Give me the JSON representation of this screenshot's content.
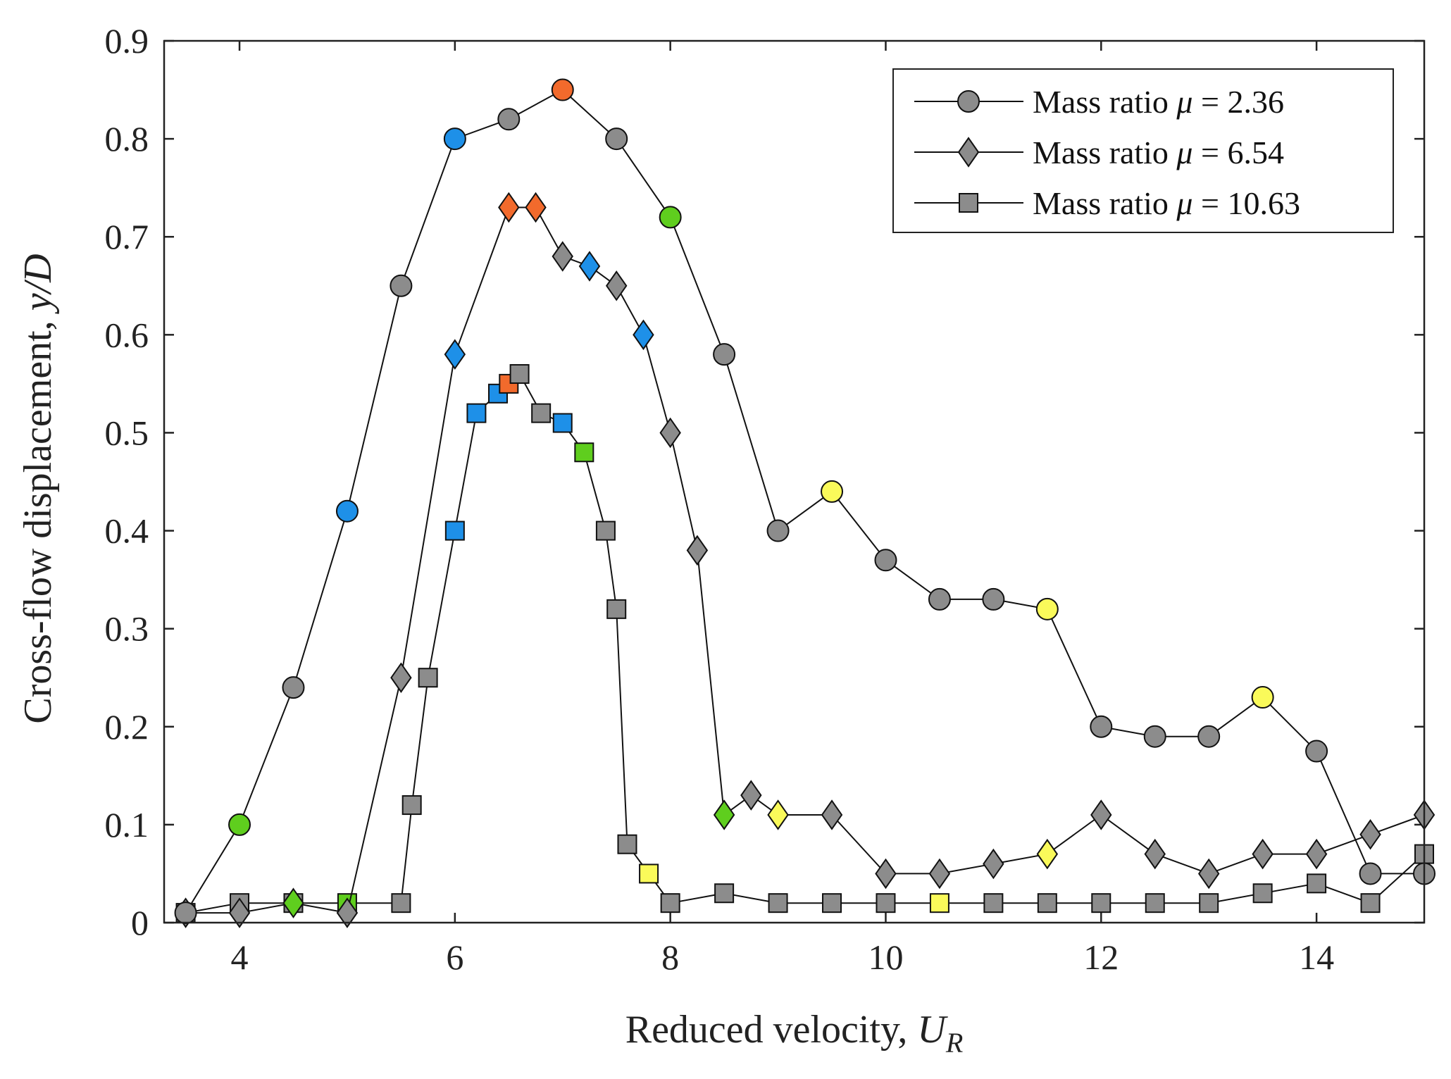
{
  "chart_data": {
    "type": "line",
    "xlabel_prefix": "Reduced velocity, ",
    "xlabel_var": "U",
    "xlabel_sub": "R",
    "ylabel_prefix": "Cross-flow displacement, ",
    "ylabel_var": "y/D",
    "xlim": [
      3.3,
      15
    ],
    "ylim": [
      0,
      0.9
    ],
    "xticks": [
      4,
      6,
      8,
      10,
      12,
      14
    ],
    "yticks": [
      0,
      0.1,
      0.2,
      0.3,
      0.4,
      0.5,
      0.6,
      0.7,
      0.8,
      0.9
    ],
    "ytick_labels": [
      "0",
      "0.1",
      "0.2",
      "0.3",
      "0.4",
      "0.5",
      "0.6",
      "0.7",
      "0.8",
      "0.9"
    ],
    "legend_position": "top-right",
    "colors": {
      "gray": "#8c8c8c",
      "blue": "#1e90e8",
      "green": "#5fce1e",
      "orange": "#f26a2c",
      "yellow": "#fafa5a"
    },
    "series": [
      {
        "name": "Mass ratio μ = 2.36",
        "label_prefix": "Mass ratio ",
        "label_var": "μ",
        "label_suffix": " = 2.36",
        "marker": "circle",
        "points": [
          {
            "x": 3.5,
            "y": 0.01,
            "c": "gray"
          },
          {
            "x": 4.0,
            "y": 0.1,
            "c": "green"
          },
          {
            "x": 4.5,
            "y": 0.24,
            "c": "gray"
          },
          {
            "x": 5.0,
            "y": 0.42,
            "c": "blue"
          },
          {
            "x": 5.5,
            "y": 0.65,
            "c": "gray"
          },
          {
            "x": 6.0,
            "y": 0.8,
            "c": "blue"
          },
          {
            "x": 6.5,
            "y": 0.82,
            "c": "gray"
          },
          {
            "x": 7.0,
            "y": 0.85,
            "c": "orange"
          },
          {
            "x": 7.5,
            "y": 0.8,
            "c": "gray"
          },
          {
            "x": 8.0,
            "y": 0.72,
            "c": "green"
          },
          {
            "x": 8.5,
            "y": 0.58,
            "c": "gray"
          },
          {
            "x": 9.0,
            "y": 0.4,
            "c": "gray"
          },
          {
            "x": 9.5,
            "y": 0.44,
            "c": "yellow"
          },
          {
            "x": 10.0,
            "y": 0.37,
            "c": "gray"
          },
          {
            "x": 10.5,
            "y": 0.33,
            "c": "gray"
          },
          {
            "x": 11.0,
            "y": 0.33,
            "c": "gray"
          },
          {
            "x": 11.5,
            "y": 0.32,
            "c": "yellow"
          },
          {
            "x": 12.0,
            "y": 0.2,
            "c": "gray"
          },
          {
            "x": 12.5,
            "y": 0.19,
            "c": "gray"
          },
          {
            "x": 13.0,
            "y": 0.19,
            "c": "gray"
          },
          {
            "x": 13.5,
            "y": 0.23,
            "c": "yellow"
          },
          {
            "x": 14.0,
            "y": 0.175,
            "c": "gray"
          },
          {
            "x": 14.5,
            "y": 0.05,
            "c": "gray"
          },
          {
            "x": 15.0,
            "y": 0.05,
            "c": "gray"
          }
        ]
      },
      {
        "name": "Mass ratio μ = 6.54",
        "label_prefix": "Mass ratio ",
        "label_var": "μ",
        "label_suffix": " = 6.54",
        "marker": "diamond",
        "points": [
          {
            "x": 3.5,
            "y": 0.01,
            "c": "gray"
          },
          {
            "x": 4.0,
            "y": 0.01,
            "c": "gray"
          },
          {
            "x": 4.5,
            "y": 0.02,
            "c": "green"
          },
          {
            "x": 5.0,
            "y": 0.01,
            "c": "gray"
          },
          {
            "x": 5.5,
            "y": 0.25,
            "c": "gray"
          },
          {
            "x": 6.0,
            "y": 0.58,
            "c": "blue"
          },
          {
            "x": 6.5,
            "y": 0.73,
            "c": "orange"
          },
          {
            "x": 6.75,
            "y": 0.73,
            "c": "orange"
          },
          {
            "x": 7.0,
            "y": 0.68,
            "c": "gray"
          },
          {
            "x": 7.25,
            "y": 0.67,
            "c": "blue"
          },
          {
            "x": 7.5,
            "y": 0.65,
            "c": "gray"
          },
          {
            "x": 7.75,
            "y": 0.6,
            "c": "blue"
          },
          {
            "x": 8.0,
            "y": 0.5,
            "c": "gray"
          },
          {
            "x": 8.25,
            "y": 0.38,
            "c": "gray"
          },
          {
            "x": 8.5,
            "y": 0.11,
            "c": "green"
          },
          {
            "x": 8.75,
            "y": 0.13,
            "c": "gray"
          },
          {
            "x": 9.0,
            "y": 0.11,
            "c": "yellow"
          },
          {
            "x": 9.5,
            "y": 0.11,
            "c": "gray"
          },
          {
            "x": 10.0,
            "y": 0.05,
            "c": "gray"
          },
          {
            "x": 10.5,
            "y": 0.05,
            "c": "gray"
          },
          {
            "x": 11.0,
            "y": 0.06,
            "c": "gray"
          },
          {
            "x": 11.5,
            "y": 0.07,
            "c": "yellow"
          },
          {
            "x": 12.0,
            "y": 0.11,
            "c": "gray"
          },
          {
            "x": 12.5,
            "y": 0.07,
            "c": "gray"
          },
          {
            "x": 13.0,
            "y": 0.05,
            "c": "gray"
          },
          {
            "x": 13.5,
            "y": 0.07,
            "c": "gray"
          },
          {
            "x": 14.0,
            "y": 0.07,
            "c": "gray"
          },
          {
            "x": 14.5,
            "y": 0.09,
            "c": "gray"
          },
          {
            "x": 15.0,
            "y": 0.11,
            "c": "gray"
          }
        ]
      },
      {
        "name": "Mass ratio μ = 10.63",
        "label_prefix": "Mass ratio ",
        "label_var": "μ",
        "label_suffix": " = 10.63",
        "marker": "square",
        "points": [
          {
            "x": 3.5,
            "y": 0.01,
            "c": "gray"
          },
          {
            "x": 4.0,
            "y": 0.02,
            "c": "gray"
          },
          {
            "x": 4.5,
            "y": 0.02,
            "c": "gray"
          },
          {
            "x": 5.0,
            "y": 0.02,
            "c": "green"
          },
          {
            "x": 5.5,
            "y": 0.02,
            "c": "gray"
          },
          {
            "x": 5.6,
            "y": 0.12,
            "c": "gray"
          },
          {
            "x": 5.75,
            "y": 0.25,
            "c": "gray"
          },
          {
            "x": 6.0,
            "y": 0.4,
            "c": "blue"
          },
          {
            "x": 6.2,
            "y": 0.52,
            "c": "blue"
          },
          {
            "x": 6.4,
            "y": 0.54,
            "c": "blue"
          },
          {
            "x": 6.5,
            "y": 0.55,
            "c": "orange"
          },
          {
            "x": 6.6,
            "y": 0.56,
            "c": "gray"
          },
          {
            "x": 6.8,
            "y": 0.52,
            "c": "gray"
          },
          {
            "x": 7.0,
            "y": 0.51,
            "c": "blue"
          },
          {
            "x": 7.2,
            "y": 0.48,
            "c": "green"
          },
          {
            "x": 7.4,
            "y": 0.4,
            "c": "gray"
          },
          {
            "x": 7.5,
            "y": 0.32,
            "c": "gray"
          },
          {
            "x": 7.6,
            "y": 0.08,
            "c": "gray"
          },
          {
            "x": 7.8,
            "y": 0.05,
            "c": "yellow"
          },
          {
            "x": 8.0,
            "y": 0.02,
            "c": "gray"
          },
          {
            "x": 8.5,
            "y": 0.03,
            "c": "gray"
          },
          {
            "x": 9.0,
            "y": 0.02,
            "c": "gray"
          },
          {
            "x": 9.5,
            "y": 0.02,
            "c": "gray"
          },
          {
            "x": 10.0,
            "y": 0.02,
            "c": "gray"
          },
          {
            "x": 10.5,
            "y": 0.02,
            "c": "yellow"
          },
          {
            "x": 11.0,
            "y": 0.02,
            "c": "gray"
          },
          {
            "x": 11.5,
            "y": 0.02,
            "c": "gray"
          },
          {
            "x": 12.0,
            "y": 0.02,
            "c": "gray"
          },
          {
            "x": 12.5,
            "y": 0.02,
            "c": "gray"
          },
          {
            "x": 13.0,
            "y": 0.02,
            "c": "gray"
          },
          {
            "x": 13.5,
            "y": 0.03,
            "c": "gray"
          },
          {
            "x": 14.0,
            "y": 0.04,
            "c": "gray"
          },
          {
            "x": 14.5,
            "y": 0.02,
            "c": "gray"
          },
          {
            "x": 15.0,
            "y": 0.07,
            "c": "gray"
          }
        ]
      }
    ]
  }
}
